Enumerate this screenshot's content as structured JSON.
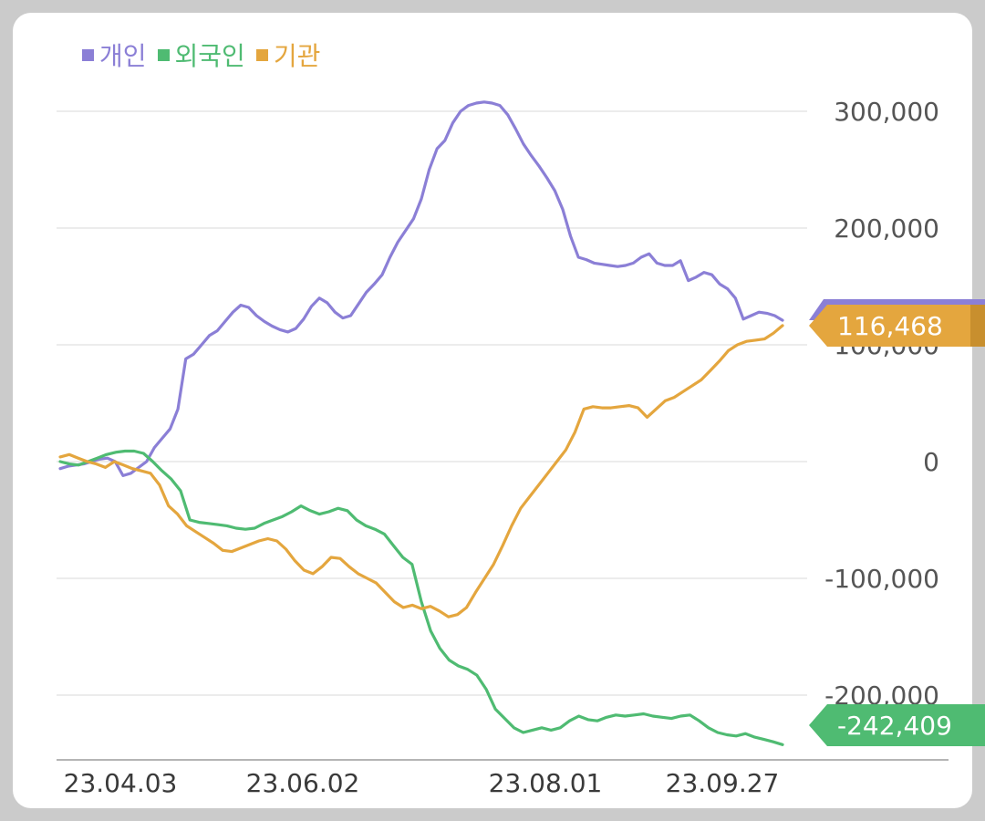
{
  "colors": {
    "individual": "#8b7fd6",
    "foreign": "#4fbb72",
    "institution": "#e4a63e",
    "grid": "#e6e6e6",
    "axis": "#b5b5b5"
  },
  "legend": [
    {
      "label": "개인",
      "color": "#8b7fd6",
      "icon": "square-icon"
    },
    {
      "label": "외국인",
      "color": "#4fbb72",
      "icon": "square-icon"
    },
    {
      "label": "기관",
      "color": "#e4a63e",
      "icon": "square-icon"
    }
  ],
  "chart_data": {
    "type": "line",
    "title": "",
    "xlabel": "",
    "ylabel": "",
    "ylim": [
      -255000,
      315000
    ],
    "y_ticks": [
      "300,000",
      "200,000",
      "100,000",
      "0",
      "-100,000",
      "-200,000"
    ],
    "x_ticks": [
      "23.04.03",
      "23.06.02",
      "23.08.01",
      "23.09.27"
    ],
    "grid": true,
    "legend_position": "top-left",
    "series": [
      {
        "name": "개인",
        "color": "#8b7fd6",
        "values": [
          -6000,
          -4000,
          -3000,
          -2000,
          0,
          2000,
          3000,
          0,
          -12000,
          -10000,
          -5000,
          0,
          12000,
          20000,
          28000,
          45000,
          88000,
          92000,
          100000,
          108000,
          112000,
          120000,
          128000,
          134000,
          132000,
          125000,
          120000,
          116000,
          113000,
          111000,
          114000,
          122000,
          133000,
          140000,
          136000,
          128000,
          123000,
          125000,
          135000,
          145000,
          152000,
          160000,
          175000,
          188000,
          198000,
          208000,
          225000,
          250000,
          268000,
          275000,
          290000,
          300000,
          305000,
          307000,
          308000,
          307000,
          305000,
          297000,
          285000,
          272000,
          262000,
          253000,
          243000,
          232000,
          216000,
          193000,
          175000,
          173000,
          170000,
          169000,
          168000,
          167000,
          168000,
          170000,
          175000,
          178000,
          170000,
          168000,
          168000,
          172000,
          155000,
          158000,
          162000,
          160000,
          152000,
          148000,
          140000,
          122000,
          125000,
          128000,
          127000,
          125000,
          121000
        ],
        "last_label": "",
        "marker": "end-arrow"
      },
      {
        "name": "외국인",
        "color": "#4fbb72",
        "values": [
          0,
          -2000,
          -3000,
          0,
          3000,
          6000,
          8000,
          9000,
          9000,
          7000,
          0,
          -8000,
          -15000,
          -25000,
          -50000,
          -52000,
          -53000,
          -54000,
          -55000,
          -57000,
          -58000,
          -57000,
          -53000,
          -50000,
          -47000,
          -43000,
          -38000,
          -42000,
          -45000,
          -43000,
          -40000,
          -42000,
          -50000,
          -55000,
          -58000,
          -62000,
          -72000,
          -82000,
          -88000,
          -120000,
          -145000,
          -160000,
          -170000,
          -175000,
          -178000,
          -183000,
          -195000,
          -212000,
          -220000,
          -228000,
          -232000,
          -230000,
          -228000,
          -230000,
          -228000,
          -222000,
          -218000,
          -221000,
          -222000,
          -219000,
          -217000,
          -218000,
          -217000,
          -216000,
          -218000,
          -219000,
          -220000,
          -218000,
          -217000,
          -222000,
          -228000,
          -232000,
          -234000,
          -235000,
          -233000,
          -236000,
          -238000,
          -240000,
          -242409
        ],
        "last_label": "-242,409",
        "marker": "end-badge"
      },
      {
        "name": "기관",
        "color": "#e4a63e",
        "values": [
          4000,
          6000,
          3000,
          0,
          -2000,
          -5000,
          0,
          -3000,
          -6000,
          -8000,
          -10000,
          -20000,
          -38000,
          -45000,
          -55000,
          -60000,
          -65000,
          -70000,
          -76000,
          -77000,
          -74000,
          -71000,
          -68000,
          -66000,
          -68000,
          -75000,
          -85000,
          -93000,
          -96000,
          -90000,
          -82000,
          -83000,
          -90000,
          -96000,
          -100000,
          -104000,
          -112000,
          -120000,
          -125000,
          -123000,
          -126000,
          -124000,
          -128000,
          -133000,
          -131000,
          -125000,
          -112000,
          -100000,
          -88000,
          -72000,
          -55000,
          -40000,
          -30000,
          -20000,
          -10000,
          0,
          10000,
          25000,
          45000,
          47000,
          46000,
          46000,
          47000,
          48000,
          46000,
          38000,
          45000,
          52000,
          55000,
          60000,
          65000,
          70000,
          78000,
          86000,
          95000,
          100000,
          103000,
          104000,
          105000,
          110000,
          116468
        ],
        "last_label": "116,468",
        "marker": "end-badge"
      }
    ]
  }
}
